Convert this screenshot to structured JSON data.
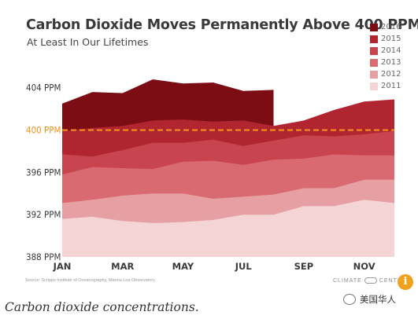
{
  "figure": {
    "title": "Carbon Dioxide Moves Permanently Above 400 PPM",
    "subtitle": "At Least In Our Lifetimes",
    "source": "Source: Scripps Institute of Oceanography, Mauna Loa Observatory",
    "brand": {
      "left": "CLIMATE",
      "right": "CENTRAL"
    },
    "info_glyph": "i"
  },
  "caption": "Carbon dioxide concentrations.",
  "watermark": "美国华人",
  "colors": {
    "2016": "#7d0d14",
    "2015": "#b02530",
    "2014": "#c84550",
    "2013": "#d96a71",
    "2012": "#e6a0a4",
    "2011": "#f4d4d5",
    "threshold": "#f0901a",
    "text": "#3b3b3b"
  },
  "chart_data": {
    "type": "area",
    "title": "Carbon Dioxide Moves Permanently Above 400 PPM",
    "subtitle": "At Least In Our Lifetimes",
    "xlabel": "",
    "ylabel": "",
    "x": [
      1,
      2,
      3,
      4,
      5,
      6,
      7,
      8,
      9,
      10,
      11,
      12
    ],
    "xlim": [
      1,
      12
    ],
    "ylim": [
      388,
      404.5
    ],
    "yticks": [
      {
        "value": 404,
        "label": "404 PPM"
      },
      {
        "value": 400,
        "label": "400 PPM",
        "highlight": true
      },
      {
        "value": 396,
        "label": "396 PPM"
      },
      {
        "value": 392,
        "label": "392 PPM"
      },
      {
        "value": 388,
        "label": "388 PPM"
      }
    ],
    "xticks": [
      {
        "value": 1,
        "label": "JAN"
      },
      {
        "value": 3,
        "label": "MAR"
      },
      {
        "value": 5,
        "label": "MAY"
      },
      {
        "value": 7,
        "label": "JUL"
      },
      {
        "value": 9,
        "label": "SEP"
      },
      {
        "value": 11,
        "label": "NOV"
      }
    ],
    "reference_line": {
      "value": 400,
      "style": "dashed"
    },
    "legend_placement": "top-right",
    "series": [
      {
        "name": "2016",
        "values": [
          402.5,
          403.6,
          403.5,
          404.8,
          404.4,
          404.5,
          403.7,
          403.8,
          null,
          null,
          null,
          null
        ]
      },
      {
        "name": "2015",
        "values": [
          399.9,
          400.2,
          400.4,
          400.9,
          401.0,
          400.8,
          400.9,
          400.4,
          400.9,
          401.9,
          402.7,
          402.9
        ]
      },
      {
        "name": "2014",
        "values": [
          397.7,
          397.5,
          398.1,
          398.8,
          398.8,
          399.1,
          398.5,
          399.0,
          399.5,
          399.4,
          399.6,
          399.9
        ]
      },
      {
        "name": "2013",
        "values": [
          395.8,
          396.5,
          396.4,
          396.3,
          397.0,
          397.1,
          396.7,
          397.2,
          397.3,
          397.7,
          397.6,
          397.6
        ]
      },
      {
        "name": "2012",
        "values": [
          393.1,
          393.4,
          393.8,
          394.0,
          394.0,
          393.5,
          393.7,
          393.9,
          394.5,
          394.5,
          395.3,
          395.3
        ]
      },
      {
        "name": "2011",
        "values": [
          391.6,
          391.8,
          391.4,
          391.2,
          391.3,
          391.5,
          392.0,
          392.0,
          392.8,
          392.8,
          393.4,
          393.1
        ]
      }
    ]
  }
}
